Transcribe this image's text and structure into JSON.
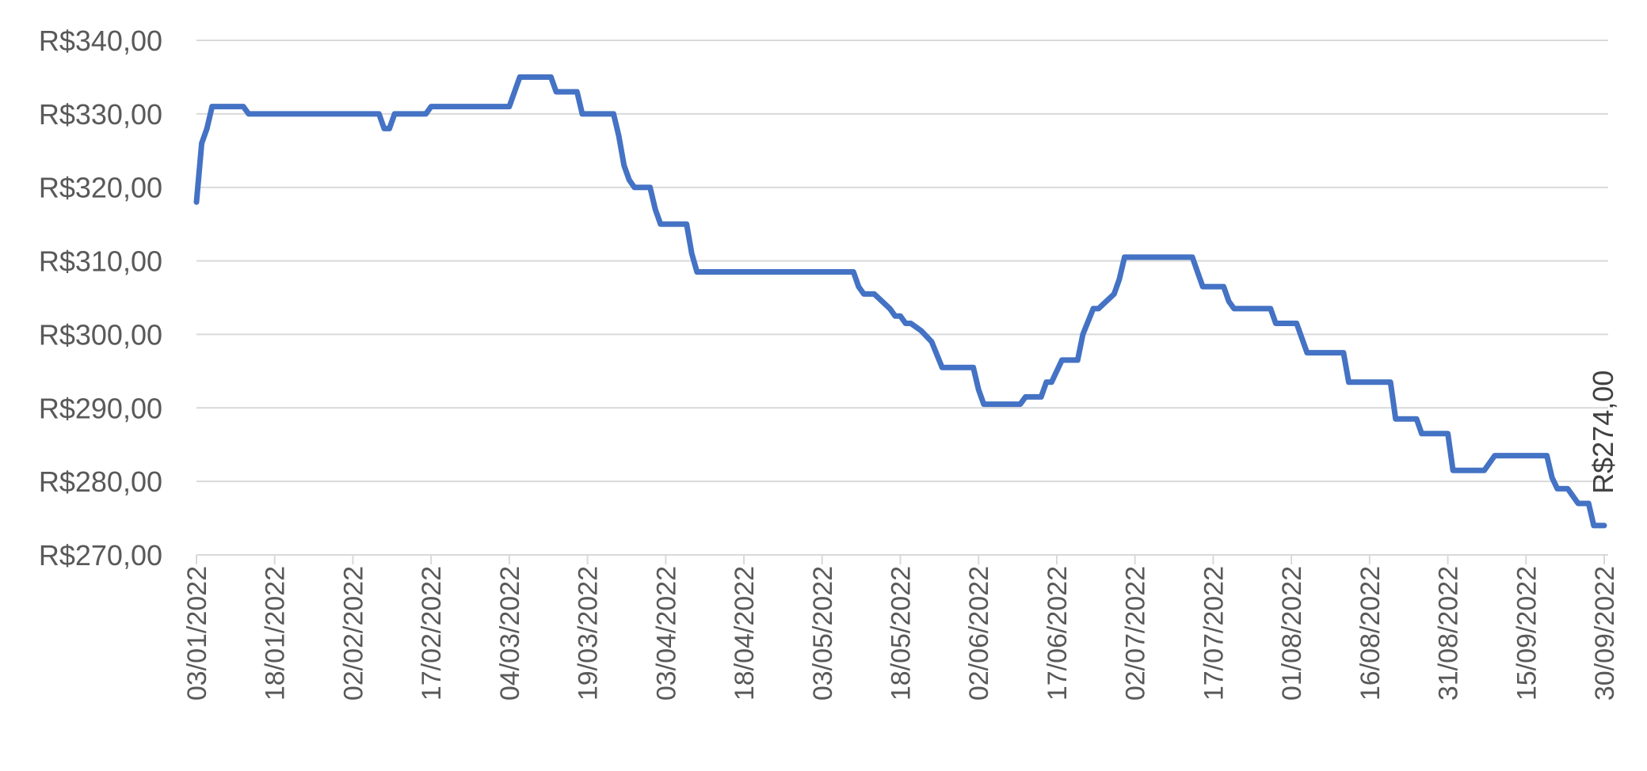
{
  "chart_data": {
    "type": "line",
    "title": "",
    "xlabel": "",
    "ylabel": "",
    "x_range": [
      "03/01/2022",
      "30/09/2022"
    ],
    "ylim": [
      270,
      340
    ],
    "grid": true,
    "y_ticks": [
      270,
      280,
      290,
      300,
      310,
      320,
      330,
      340
    ],
    "y_tick_labels": [
      "R$270,00",
      "R$280,00",
      "R$290,00",
      "R$300,00",
      "R$310,00",
      "R$320,00",
      "R$330,00",
      "R$340,00"
    ],
    "x_ticks": [
      "03/01/2022",
      "18/01/2022",
      "02/02/2022",
      "17/02/2022",
      "04/03/2022",
      "19/03/2022",
      "03/04/2022",
      "18/04/2022",
      "03/05/2022",
      "18/05/2022",
      "02/06/2022",
      "17/06/2022",
      "02/07/2022",
      "17/07/2022",
      "01/08/2022",
      "16/08/2022",
      "31/08/2022",
      "15/09/2022",
      "30/09/2022"
    ],
    "colors": {
      "series": "#4472C4",
      "grid": "#D9D9D9",
      "text": "#595959"
    },
    "series": [
      {
        "points": [
          [
            "03/01/2022",
            318
          ],
          [
            "04/01/2022",
            326
          ],
          [
            "05/01/2022",
            328
          ],
          [
            "06/01/2022",
            331
          ],
          [
            "12/01/2022",
            331
          ],
          [
            "13/01/2022",
            330
          ],
          [
            "28/01/2022",
            330
          ],
          [
            "07/02/2022",
            330
          ],
          [
            "08/02/2022",
            328
          ],
          [
            "09/02/2022",
            328
          ],
          [
            "10/02/2022",
            330
          ],
          [
            "16/02/2022",
            330
          ],
          [
            "17/02/2022",
            331
          ],
          [
            "03/03/2022",
            331
          ],
          [
            "04/03/2022",
            331
          ],
          [
            "05/03/2022",
            333
          ],
          [
            "06/03/2022",
            335
          ],
          [
            "12/03/2022",
            335
          ],
          [
            "13/03/2022",
            333
          ],
          [
            "17/03/2022",
            333
          ],
          [
            "18/03/2022",
            330
          ],
          [
            "24/03/2022",
            330
          ],
          [
            "25/03/2022",
            327
          ],
          [
            "26/03/2022",
            323
          ],
          [
            "27/03/2022",
            321
          ],
          [
            "28/03/2022",
            320
          ],
          [
            "31/03/2022",
            320
          ],
          [
            "01/04/2022",
            317
          ],
          [
            "02/04/2022",
            315
          ],
          [
            "07/04/2022",
            315
          ],
          [
            "08/04/2022",
            311
          ],
          [
            "09/04/2022",
            308.5
          ],
          [
            "09/05/2022",
            308.5
          ],
          [
            "10/05/2022",
            306.5
          ],
          [
            "11/05/2022",
            305.5
          ],
          [
            "13/05/2022",
            305.5
          ],
          [
            "16/05/2022",
            303.5
          ],
          [
            "17/05/2022",
            302.5
          ],
          [
            "18/05/2022",
            302.5
          ],
          [
            "19/05/2022",
            301.5
          ],
          [
            "20/05/2022",
            301.5
          ],
          [
            "22/05/2022",
            300.5
          ],
          [
            "24/05/2022",
            299
          ],
          [
            "26/05/2022",
            295.5
          ],
          [
            "01/06/2022",
            295.5
          ],
          [
            "02/06/2022",
            292.5
          ],
          [
            "03/06/2022",
            290.5
          ],
          [
            "10/06/2022",
            290.5
          ],
          [
            "11/06/2022",
            291.5
          ],
          [
            "14/06/2022",
            291.5
          ],
          [
            "15/06/2022",
            293.5
          ],
          [
            "16/06/2022",
            293.5
          ],
          [
            "18/06/2022",
            296.5
          ],
          [
            "21/06/2022",
            296.5
          ],
          [
            "22/06/2022",
            300
          ],
          [
            "24/06/2022",
            303.5
          ],
          [
            "25/06/2022",
            303.5
          ],
          [
            "28/06/2022",
            305.5
          ],
          [
            "29/06/2022",
            307.5
          ],
          [
            "30/06/2022",
            310.5
          ],
          [
            "13/07/2022",
            310.5
          ],
          [
            "14/07/2022",
            308.5
          ],
          [
            "15/07/2022",
            306.5
          ],
          [
            "19/07/2022",
            306.5
          ],
          [
            "20/07/2022",
            304.5
          ],
          [
            "21/07/2022",
            303.5
          ],
          [
            "28/07/2022",
            303.5
          ],
          [
            "29/07/2022",
            301.5
          ],
          [
            "02/08/2022",
            301.5
          ],
          [
            "03/08/2022",
            299.5
          ],
          [
            "04/08/2022",
            297.5
          ],
          [
            "11/08/2022",
            297.5
          ],
          [
            "12/08/2022",
            293.5
          ],
          [
            "20/08/2022",
            293.5
          ],
          [
            "21/08/2022",
            288.5
          ],
          [
            "25/08/2022",
            288.5
          ],
          [
            "26/08/2022",
            286.5
          ],
          [
            "31/08/2022",
            286.5
          ],
          [
            "01/09/2022",
            281.5
          ],
          [
            "07/09/2022",
            281.5
          ],
          [
            "08/09/2022",
            282.5
          ],
          [
            "09/09/2022",
            283.5
          ],
          [
            "19/09/2022",
            283.5
          ],
          [
            "20/09/2022",
            280.5
          ],
          [
            "21/09/2022",
            279
          ],
          [
            "23/09/2022",
            279
          ],
          [
            "24/09/2022",
            278
          ],
          [
            "25/09/2022",
            277
          ],
          [
            "27/09/2022",
            277
          ],
          [
            "28/09/2022",
            274
          ],
          [
            "30/09/2022",
            274
          ]
        ]
      }
    ],
    "data_labels": [
      {
        "x": "30/09/2022",
        "y": 274,
        "text": "R$274,00"
      }
    ]
  }
}
